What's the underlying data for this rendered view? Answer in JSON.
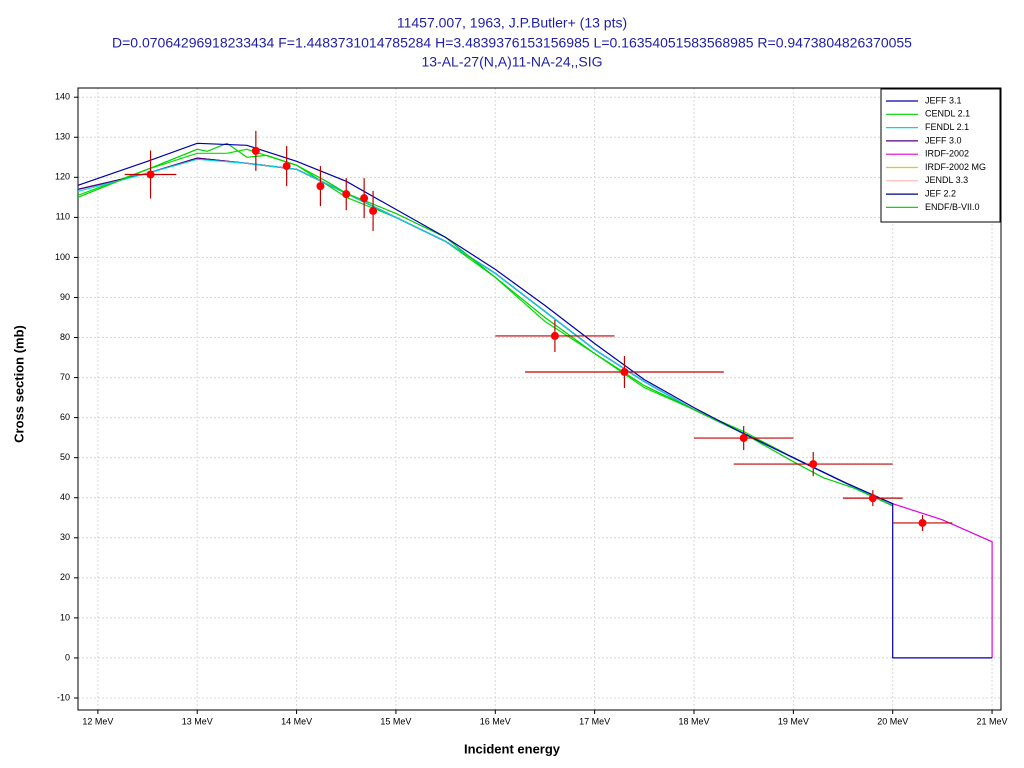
{
  "chart_data": {
    "type": "line",
    "title": "11457.007, 1963, J.P.Butler+ (13 pts)",
    "subtitle": "D=0.07064296918233434 F=1.4483731014785284 H=3.4839376153156985 L=0.16354051583568985 R=0.9473804826370055",
    "reaction": "13-AL-27(N,A)11-NA-24,,SIG",
    "x_label": "Incident energy",
    "y_label": "Cross section (mb)",
    "xlim": [
      11.8,
      21.09
    ],
    "ylim": [
      -13,
      142.3
    ],
    "xticks": [
      {
        "value": 12,
        "label": "12 MeV"
      },
      {
        "value": 13,
        "label": "13 MeV"
      },
      {
        "value": 14,
        "label": "14 MeV"
      },
      {
        "value": 15,
        "label": "15 MeV"
      },
      {
        "value": 16,
        "label": "16 MeV"
      },
      {
        "value": 17,
        "label": "17 MeV"
      },
      {
        "value": 18,
        "label": "18 MeV"
      },
      {
        "value": 19,
        "label": "19 MeV"
      },
      {
        "value": 20,
        "label": "20 MeV"
      },
      {
        "value": 21,
        "label": "21 MeV"
      }
    ],
    "yticks": [
      -10,
      0,
      10,
      20,
      30,
      40,
      50,
      60,
      70,
      80,
      90,
      100,
      110,
      120,
      130,
      140
    ],
    "grid": true,
    "legend": "top-right",
    "series": [
      {
        "name": "JEFF 3.1",
        "color": "#0000a8",
        "x": [
          11.8,
          12.5,
          13,
          13.5,
          14,
          14.5,
          15,
          15.5,
          16,
          16.5,
          17,
          17.5,
          18,
          18.5,
          19,
          19.5,
          20,
          20,
          21
        ],
        "values": [
          118,
          124,
          128.5,
          128,
          124,
          119,
          112,
          105,
          97,
          88,
          78.5,
          69.5,
          62.5,
          56,
          50,
          44,
          38.5,
          0,
          0
        ]
      },
      {
        "name": "CENDL 2.1",
        "color": "#00d000",
        "x": [
          11.8,
          12.2,
          12.6,
          13,
          13.1,
          13.3,
          13.5,
          13.7,
          14,
          14.3,
          14.5,
          15,
          15.5,
          16,
          16.5,
          17,
          17.5,
          18,
          18.5,
          19,
          19.3,
          19.6,
          20
        ],
        "values": [
          115,
          119,
          123,
          127,
          126.5,
          128.5,
          125,
          125.5,
          123,
          119,
          116,
          111,
          105,
          95,
          85,
          76,
          68,
          62,
          56,
          49,
          45,
          42.5,
          38
        ]
      },
      {
        "name": "FENDL 2.1",
        "color": "#00d8e8",
        "x": [
          11.8,
          12.5,
          13,
          13.5,
          14,
          14.5,
          15,
          15.5,
          16,
          16.5,
          17,
          17.5,
          18,
          18.5,
          19,
          19.5,
          20
        ],
        "values": [
          116.5,
          121,
          124.5,
          123.5,
          122,
          116,
          110,
          104,
          96,
          86.5,
          77,
          69,
          62,
          56,
          50,
          44,
          38
        ]
      },
      {
        "name": "JEFF 3.0",
        "color": "#500080",
        "x": [
          11.8,
          12.5,
          13,
          13.5,
          14,
          14.5,
          15,
          15.5,
          16,
          16.5,
          17,
          17.5,
          18,
          18.5,
          19,
          19.5,
          20
        ],
        "values": [
          117,
          121,
          124.8,
          123.5,
          122,
          116,
          110,
          104,
          96,
          86.5,
          77,
          69,
          62,
          56,
          50,
          44,
          38
        ]
      },
      {
        "name": "IRDF-2002",
        "color": "#e000e0",
        "x": [
          11.8,
          12.5,
          13,
          13.5,
          14,
          14.5,
          15,
          15.5,
          16,
          16.5,
          17,
          17.5,
          18,
          18.5,
          19,
          19.5,
          20,
          20.5,
          21,
          21
        ],
        "values": [
          117,
          121,
          124.8,
          123.5,
          122,
          116,
          110,
          104,
          96,
          86.5,
          77,
          69,
          62,
          56,
          50,
          44,
          38.5,
          34.5,
          29,
          0
        ]
      },
      {
        "name": "IRDF-2002 MG",
        "color": "#e8c800",
        "x": [
          11.8,
          12.5,
          13,
          13.5,
          14,
          14.5,
          15,
          15.5,
          16,
          16.5,
          17,
          17.5,
          18,
          18.5,
          19,
          19.5,
          20
        ],
        "values": [
          117,
          121,
          124.8,
          123.5,
          122,
          116,
          110,
          104,
          96,
          86.5,
          77,
          69,
          62,
          56,
          50,
          44,
          38
        ]
      },
      {
        "name": "JENDL 3.3",
        "color": "#ffb0b0",
        "x": [
          11.8,
          12.5,
          13,
          13.5,
          14,
          14.5,
          15,
          15.5,
          16,
          16.5,
          17,
          17.5,
          18,
          18.5,
          19,
          19.5,
          20
        ],
        "values": [
          117,
          121,
          124.8,
          123.5,
          122,
          116,
          110,
          104,
          96,
          86.5,
          77,
          69,
          62,
          56,
          50,
          44,
          38
        ]
      },
      {
        "name": "JEF 2.2",
        "color": "#000080",
        "x": [
          11.8,
          12.5,
          13,
          13.5,
          14,
          14.5,
          15,
          15.5,
          16,
          16.5,
          17,
          17.5,
          18,
          18.5,
          19,
          19.5,
          20
        ],
        "values": [
          117,
          121,
          124.8,
          123.5,
          122,
          116,
          110,
          104,
          96,
          86.5,
          77,
          69,
          62,
          56,
          50,
          44,
          38
        ]
      },
      {
        "name": "ENDF/B-VII.0",
        "color": "#00e000",
        "x": [
          11.8,
          12.5,
          13,
          13.3,
          13.5,
          14,
          14.5,
          15,
          15.5,
          16,
          16.5,
          17,
          17.5,
          18,
          18.5,
          19,
          19.5,
          20
        ],
        "values": [
          115.5,
          122,
          126,
          126,
          127,
          123,
          115,
          110,
          104,
          95,
          84,
          76,
          67.5,
          62,
          56.5,
          50,
          44,
          38
        ]
      }
    ],
    "points": {
      "color": "#ff0000",
      "error_color": "#c00000",
      "x": [
        12.53,
        13.59,
        13.9,
        14.24,
        14.5,
        14.68,
        14.77,
        16.6,
        17.3,
        18.5,
        19.2,
        19.8,
        20.3
      ],
      "values": [
        120.7,
        126.6,
        122.8,
        117.8,
        115.8,
        114.8,
        111.6,
        80.4,
        71.4,
        54.9,
        48.4,
        39.9,
        33.7
      ],
      "xerr": [
        0.26,
        0,
        0,
        0,
        0,
        0,
        0,
        0.6,
        1.0,
        0.5,
        0.8,
        0.3,
        0.3
      ],
      "yerr": [
        6,
        5,
        5,
        5,
        4,
        5,
        5,
        4,
        4,
        3,
        3,
        2,
        2
      ]
    }
  }
}
